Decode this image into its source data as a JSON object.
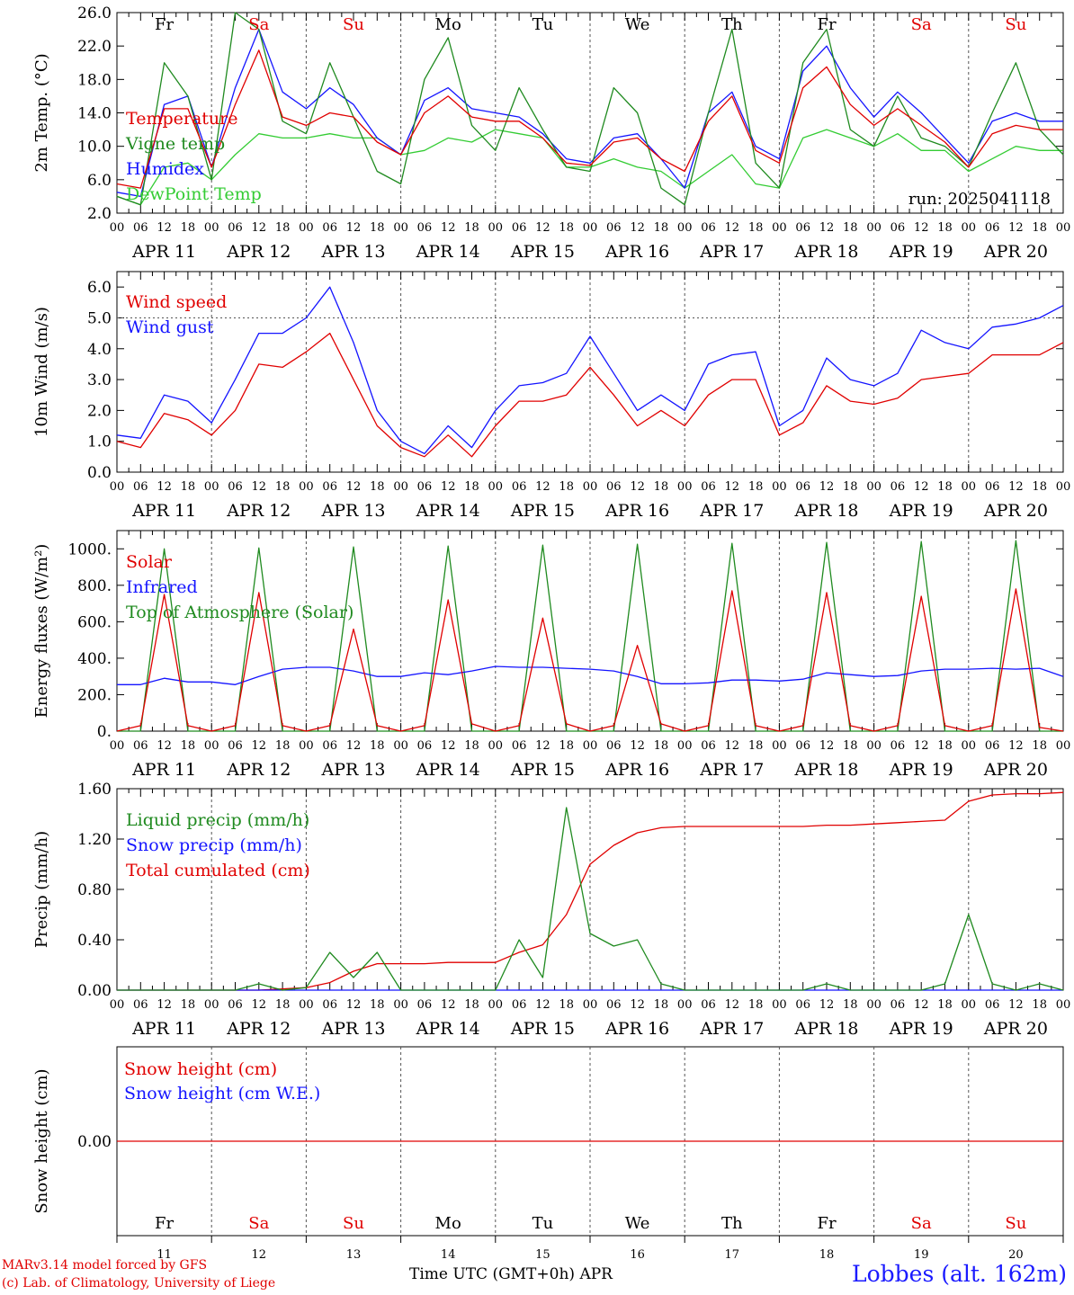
{
  "footer": {
    "model_line": "MARv3.14 model forced by GFS",
    "copyright_line": "(c) Lab. of Climatology, University of Liege",
    "x_title": "Time UTC (GMT+0h) APR",
    "station": "Lobbes (alt. 162m)"
  },
  "colors": {
    "red": "#e00000",
    "blue": "#1414ff",
    "green": "#1f8a1f",
    "lightgreen": "#33cc33",
    "grid": "#555555"
  },
  "chart_data": [
    {
      "type": "line",
      "ylabel": "2m Temp. (°C)",
      "ylim": [
        2.0,
        26.0
      ],
      "yticks": [
        "2.0",
        "6.0",
        "10.0",
        "14.0",
        "18.0",
        "22.0",
        "26.0"
      ],
      "annotation": "run: 2025041118",
      "weekdays": [
        "Fr",
        "Sa",
        "Su",
        "Mo",
        "Tu",
        "We",
        "Th",
        "Fr",
        "Sa",
        "Su"
      ],
      "x_hours": [
        0,
        6,
        12,
        18,
        24,
        30,
        36,
        42,
        48,
        54,
        60,
        66,
        72,
        78,
        84,
        90,
        96,
        102,
        108,
        114,
        120,
        126,
        132,
        138,
        144,
        150,
        156,
        162,
        168,
        174,
        180,
        186,
        192,
        198,
        204,
        210,
        216,
        222,
        228,
        234,
        240
      ],
      "series": [
        {
          "name": "Temperature",
          "color": "red",
          "values": [
            5.5,
            5.0,
            14.5,
            14.5,
            7.5,
            15.0,
            21.5,
            13.5,
            12.5,
            14.0,
            13.5,
            10.5,
            9.0,
            14.0,
            16.0,
            13.5,
            13.0,
            13.0,
            11.0,
            8.0,
            7.7,
            10.5,
            11.0,
            8.5,
            7.0,
            13.0,
            16.0,
            9.5,
            8.0,
            17.0,
            19.5,
            15.0,
            12.5,
            14.5,
            12.5,
            10.5,
            7.5,
            11.5,
            12.5,
            12.0,
            12.0
          ]
        },
        {
          "name": "Vigne temp",
          "color": "green",
          "values": [
            4.0,
            3.0,
            20.0,
            16.0,
            6.0,
            26.0,
            24.0,
            13.0,
            11.5,
            20.0,
            13.5,
            7.0,
            5.5,
            18.0,
            23.0,
            12.5,
            9.5,
            17.0,
            12.0,
            7.5,
            7.0,
            17.0,
            14.0,
            5.0,
            3.0,
            14.0,
            24.0,
            8.0,
            5.0,
            20.0,
            24.0,
            12.0,
            10.0,
            16.0,
            11.0,
            10.0,
            7.5,
            14.0,
            20.0,
            12.0,
            9.0
          ]
        },
        {
          "name": "Humidex",
          "color": "blue",
          "values": [
            4.5,
            4.0,
            15.0,
            16.0,
            7.5,
            17.0,
            24.0,
            16.5,
            14.5,
            17.0,
            15.0,
            11.0,
            9.0,
            15.5,
            17.0,
            14.5,
            14.0,
            13.5,
            11.5,
            8.5,
            8.0,
            11.0,
            11.5,
            8.5,
            5.0,
            14.0,
            16.5,
            10.0,
            8.5,
            19.0,
            22.0,
            17.0,
            13.5,
            16.5,
            14.0,
            11.0,
            8.0,
            13.0,
            14.0,
            13.0,
            13.0
          ]
        },
        {
          "name": "DewPoint Temp",
          "color": "lightgreen",
          "values": [
            4.0,
            3.0,
            7.5,
            8.0,
            6.0,
            9.0,
            11.5,
            11.0,
            11.0,
            11.5,
            11.0,
            11.0,
            9.0,
            9.5,
            11.0,
            10.5,
            12.0,
            11.5,
            11.0,
            7.5,
            7.5,
            8.5,
            7.5,
            7.0,
            5.0,
            7.0,
            9.0,
            5.5,
            5.0,
            11.0,
            12.0,
            11.0,
            10.0,
            11.5,
            9.5,
            9.5,
            7.0,
            8.5,
            10.0,
            9.5,
            9.5
          ]
        }
      ]
    },
    {
      "type": "line",
      "ylabel": "10m Wind (m/s)",
      "ylim": [
        0.0,
        6.5
      ],
      "yticks": [
        "0.0",
        "1.0",
        "2.0",
        "3.0",
        "4.0",
        "5.0",
        "6.0"
      ],
      "reference_line": 5.0,
      "x_hours": [
        0,
        6,
        12,
        18,
        24,
        30,
        36,
        42,
        48,
        54,
        60,
        66,
        72,
        78,
        84,
        90,
        96,
        102,
        108,
        114,
        120,
        126,
        132,
        138,
        144,
        150,
        156,
        162,
        168,
        174,
        180,
        186,
        192,
        198,
        204,
        210,
        216,
        222,
        228,
        234,
        240
      ],
      "series": [
        {
          "name": "Wind speed",
          "color": "red",
          "values": [
            1.0,
            0.8,
            1.9,
            1.7,
            1.2,
            2.0,
            3.5,
            3.4,
            3.9,
            4.5,
            3.0,
            1.5,
            0.8,
            0.5,
            1.2,
            0.5,
            1.5,
            2.3,
            2.3,
            2.5,
            3.4,
            2.5,
            1.5,
            2.0,
            1.5,
            2.5,
            3.0,
            3.0,
            1.2,
            1.6,
            2.8,
            2.3,
            2.2,
            2.4,
            3.0,
            3.1,
            3.2,
            3.8,
            3.8,
            3.8,
            4.2
          ]
        },
        {
          "name": "Wind gust",
          "color": "blue",
          "values": [
            1.2,
            1.1,
            2.5,
            2.3,
            1.6,
            3.0,
            4.5,
            4.5,
            5.0,
            6.0,
            4.2,
            2.0,
            1.0,
            0.6,
            1.5,
            0.8,
            2.0,
            2.8,
            2.9,
            3.2,
            4.4,
            3.2,
            2.0,
            2.5,
            2.0,
            3.5,
            3.8,
            3.9,
            1.5,
            2.0,
            3.7,
            3.0,
            2.8,
            3.2,
            4.6,
            4.2,
            4.0,
            4.7,
            4.8,
            5.0,
            5.4
          ]
        }
      ]
    },
    {
      "type": "line",
      "ylabel": "Energy fluxes (W/m²)",
      "ylim": [
        0,
        1100
      ],
      "yticks": [
        "0.",
        "200.",
        "400.",
        "600.",
        "800.",
        "1000."
      ],
      "x_hours": [
        0,
        6,
        12,
        18,
        24,
        30,
        36,
        42,
        48,
        54,
        60,
        66,
        72,
        78,
        84,
        90,
        96,
        102,
        108,
        114,
        120,
        126,
        132,
        138,
        144,
        150,
        156,
        162,
        168,
        174,
        180,
        186,
        192,
        198,
        204,
        210,
        216,
        222,
        228,
        234,
        240
      ],
      "series": [
        {
          "name": "Solar",
          "color": "red",
          "values": [
            0,
            30,
            750,
            30,
            0,
            30,
            760,
            30,
            0,
            30,
            560,
            30,
            0,
            30,
            720,
            40,
            0,
            30,
            620,
            40,
            0,
            30,
            470,
            40,
            0,
            30,
            770,
            30,
            0,
            30,
            760,
            30,
            0,
            30,
            740,
            30,
            0,
            30,
            780,
            20,
            0
          ]
        },
        {
          "name": "Infrared",
          "color": "blue",
          "values": [
            255,
            255,
            290,
            270,
            270,
            255,
            300,
            340,
            350,
            350,
            330,
            300,
            300,
            320,
            310,
            330,
            355,
            350,
            350,
            345,
            340,
            330,
            300,
            260,
            260,
            265,
            280,
            280,
            275,
            285,
            320,
            310,
            300,
            305,
            330,
            340,
            340,
            345,
            340,
            345,
            300
          ]
        },
        {
          "name": "Top of Atmosphere (Solar)",
          "color": "green",
          "values": [
            0,
            0,
            1000,
            0,
            0,
            0,
            1005,
            0,
            0,
            0,
            1010,
            0,
            0,
            0,
            1015,
            0,
            0,
            0,
            1020,
            0,
            0,
            0,
            1025,
            0,
            0,
            0,
            1030,
            0,
            0,
            0,
            1035,
            0,
            0,
            0,
            1040,
            0,
            0,
            0,
            1045,
            0,
            0
          ]
        }
      ]
    },
    {
      "type": "line",
      "ylabel": "Precip (mm/h)",
      "ylim": [
        0.0,
        1.6
      ],
      "yticks": [
        "0.00",
        "0.40",
        "0.80",
        "1.20",
        "1.60"
      ],
      "x_hours": [
        0,
        6,
        12,
        18,
        24,
        30,
        36,
        42,
        48,
        54,
        60,
        66,
        72,
        78,
        84,
        90,
        96,
        102,
        108,
        114,
        120,
        126,
        132,
        138,
        144,
        150,
        156,
        162,
        168,
        174,
        180,
        186,
        192,
        198,
        204,
        210,
        216,
        222,
        228,
        234,
        240
      ],
      "series": [
        {
          "name": "Liquid precip (mm/h)",
          "color": "green",
          "values": [
            0,
            0,
            0,
            0,
            0,
            0,
            0.05,
            0,
            0.02,
            0.3,
            0.1,
            0.3,
            0,
            0,
            0,
            0,
            0,
            0.4,
            0.1,
            1.45,
            0.45,
            0.35,
            0.4,
            0.05,
            0,
            0,
            0,
            0,
            0,
            0,
            0.05,
            0,
            0,
            0,
            0,
            0.05,
            0.6,
            0.05,
            0,
            0.05,
            0
          ]
        },
        {
          "name": "Snow precip (mm/h)",
          "color": "blue",
          "values": [
            0,
            0,
            0,
            0,
            0,
            0,
            0,
            0,
            0,
            0,
            0,
            0,
            0,
            0,
            0,
            0,
            0,
            0,
            0,
            0,
            0,
            0,
            0,
            0,
            0,
            0,
            0,
            0,
            0,
            0,
            0,
            0,
            0,
            0,
            0,
            0,
            0,
            0,
            0,
            0,
            0
          ]
        },
        {
          "name": "Total cumulated (cm)",
          "color": "red",
          "values": [
            0,
            0,
            0,
            0,
            0,
            0,
            0,
            0.01,
            0.02,
            0.06,
            0.15,
            0.21,
            0.21,
            0.21,
            0.22,
            0.22,
            0.22,
            0.3,
            0.36,
            0.6,
            1.0,
            1.15,
            1.25,
            1.29,
            1.3,
            1.3,
            1.3,
            1.3,
            1.3,
            1.3,
            1.31,
            1.31,
            1.32,
            1.33,
            1.34,
            1.35,
            1.5,
            1.55,
            1.56,
            1.56,
            1.57
          ]
        }
      ]
    },
    {
      "type": "line",
      "ylabel": "Snow height (cm)",
      "ylim": [
        -1.0,
        1.0
      ],
      "yticks": [
        "0.00"
      ],
      "weekdays": [
        "Fr",
        "Sa",
        "Su",
        "Mo",
        "Tu",
        "We",
        "Th",
        "Fr",
        "Sa",
        "Su"
      ],
      "days": [
        "11",
        "12",
        "13",
        "14",
        "15",
        "16",
        "17",
        "18",
        "19",
        "20"
      ],
      "x_hours": [
        0,
        240
      ],
      "series": [
        {
          "name": "Snow height (cm)",
          "color": "red",
          "values": [
            0.0,
            0.0
          ]
        },
        {
          "name": "Snow height (cm W.E.)",
          "color": "blue",
          "values": [
            0.0,
            0.0
          ]
        }
      ]
    }
  ],
  "axis": {
    "hour_labels": [
      "00",
      "06",
      "12",
      "18"
    ],
    "end_label": "00",
    "date_labels": [
      "APR 11",
      "APR 12",
      "APR 13",
      "APR 14",
      "APR 15",
      "APR 16",
      "APR 17",
      "APR 18",
      "APR 19",
      "APR 20"
    ],
    "weekend_days": [
      "Sa",
      "Su"
    ]
  }
}
